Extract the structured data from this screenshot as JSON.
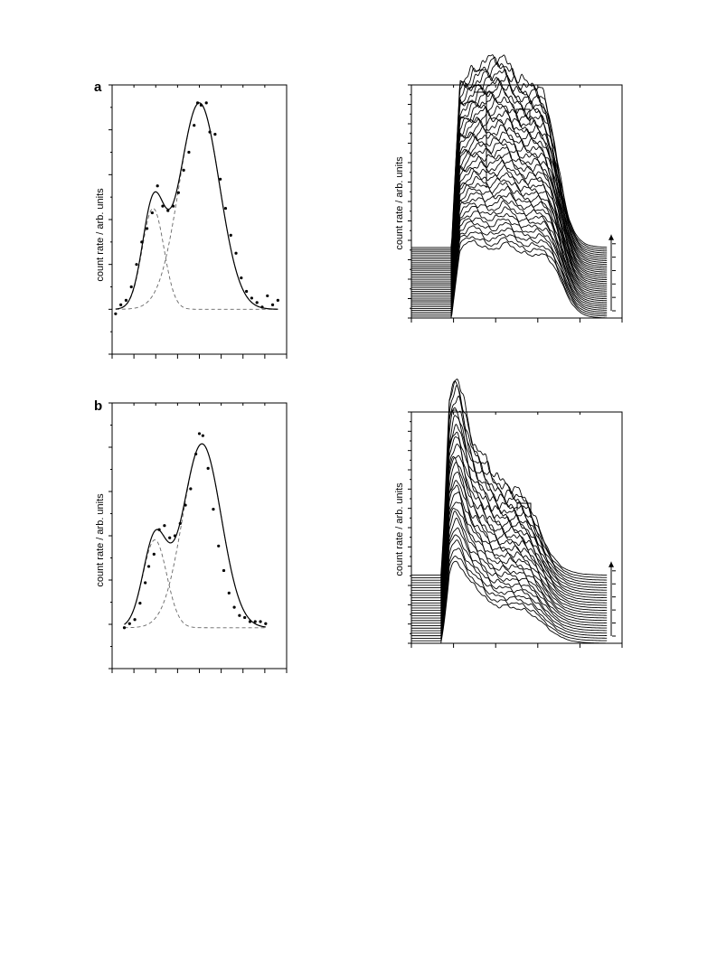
{
  "figure": {
    "panels": [
      {
        "letter": "a",
        "ylabel_left": "count rate / arb. units",
        "ylabel_right": "count rate / arb. units"
      },
      {
        "letter": "b",
        "ylabel_left": "count rate / arb. units",
        "ylabel_right": "count rate / arb. units"
      }
    ]
  },
  "chart_data": [
    {
      "panel": "a",
      "type": "scatter",
      "xlabel": "",
      "ylabel": "count rate / arb. units",
      "xlim": [
        0,
        10
      ],
      "ylim": [
        -0.2,
        1.0
      ],
      "grid": false,
      "legend": "none",
      "baseline": 0,
      "fit_components": [
        {
          "style": "dashed",
          "shape": "gaussian",
          "amplitude": 0.45,
          "center": 2.35,
          "width": 0.62
        },
        {
          "style": "dashed",
          "shape": "gaussian",
          "amplitude": 0.92,
          "center": 5.0,
          "width": 1.15
        }
      ],
      "fit_total": {
        "style": "solid",
        "note_sum_of_components": true
      },
      "points": {
        "x": [
          0.2,
          0.5,
          0.8,
          1.1,
          1.4,
          1.7,
          2.0,
          2.3,
          2.6,
          2.9,
          3.2,
          3.5,
          3.8,
          4.1,
          4.4,
          4.7,
          4.9,
          5.1,
          5.4,
          5.6,
          5.9,
          6.2,
          6.5,
          6.8,
          7.1,
          7.4,
          7.7,
          8.0,
          8.3,
          8.6,
          8.9,
          9.2,
          9.5
        ],
        "y": [
          -0.02,
          0.02,
          0.04,
          0.1,
          0.2,
          0.3,
          0.36,
          0.43,
          0.55,
          0.46,
          0.44,
          0.46,
          0.52,
          0.62,
          0.7,
          0.82,
          0.92,
          0.91,
          0.92,
          0.79,
          0.78,
          0.58,
          0.45,
          0.33,
          0.25,
          0.14,
          0.08,
          0.05,
          0.03,
          0.01,
          0.06,
          0.02,
          0.04
        ]
      }
    },
    {
      "panel": "a",
      "type": "line",
      "xlabel": "",
      "ylabel": "count rate / arb. units",
      "xlim": [
        0,
        10
      ],
      "ylim": [
        0,
        11
      ],
      "grid": false,
      "legend": "none",
      "series_count": 38,
      "offset_step": 0.09,
      "profile": {
        "rise_start": 1.9,
        "rise_end": 2.3,
        "fall_center": 7.2,
        "fall_width": 0.35,
        "fall_front_shift": 0.25,
        "plateau_height_first": 3.0,
        "plateau_height_last": 7.8,
        "bumps_first": [
          [
            2.9,
            0.6,
            0.5
          ],
          [
            4.5,
            0.5,
            0.4
          ],
          [
            6.5,
            0.2,
            0.4
          ]
        ],
        "bumps_last": [
          [
            3.4,
            0.8,
            0.5
          ],
          [
            4.3,
            1.0,
            0.45
          ],
          [
            6.4,
            0.4,
            0.5
          ]
        ]
      },
      "markers": [
        "vertical-line-near-peak",
        "bracket-near-shoulder",
        "up-arrow-right"
      ],
      "right_ticks_count": 6
    },
    {
      "panel": "b",
      "type": "scatter",
      "xlabel": "",
      "ylabel": "count rate / arb. units",
      "xlim": [
        0,
        10
      ],
      "ylim": [
        -0.2,
        1.1
      ],
      "grid": false,
      "legend": "none",
      "baseline": 0,
      "fit_components": [
        {
          "style": "dashed",
          "shape": "gaussian",
          "amplitude": 0.43,
          "center": 2.45,
          "width": 0.68
        },
        {
          "style": "dashed",
          "shape": "gaussian",
          "amplitude": 0.9,
          "center": 5.15,
          "width": 1.1
        }
      ],
      "fit_total": {
        "style": "solid",
        "note_sum_of_components": true
      },
      "points": {
        "x": [
          0.7,
          1.0,
          1.3,
          1.6,
          1.9,
          2.1,
          2.4,
          2.7,
          3.0,
          3.3,
          3.6,
          3.9,
          4.2,
          4.5,
          4.8,
          5.0,
          5.2,
          5.5,
          5.8,
          6.1,
          6.4,
          6.7,
          7.0,
          7.3,
          7.6,
          7.9,
          8.2,
          8.5,
          8.8
        ],
        "y": [
          0.0,
          0.02,
          0.04,
          0.12,
          0.22,
          0.3,
          0.36,
          0.48,
          0.5,
          0.44,
          0.45,
          0.51,
          0.6,
          0.68,
          0.85,
          0.95,
          0.94,
          0.78,
          0.58,
          0.4,
          0.28,
          0.17,
          0.1,
          0.06,
          0.05,
          0.03,
          0.03,
          0.03,
          0.02
        ]
      }
    },
    {
      "panel": "b",
      "type": "line",
      "xlabel": "",
      "ylabel": "count rate / arb. units",
      "xlim": [
        0,
        10
      ],
      "ylim": [
        0,
        11
      ],
      "grid": false,
      "legend": "none",
      "series_count": 28,
      "offset_step": 0.12,
      "profile": {
        "rise_start": 1.4,
        "rise_end": 1.8,
        "fall_center": 6.3,
        "fall_width": 0.5,
        "fall_front_shift": 0.3,
        "plateau_height_first": 1.8,
        "plateau_height_last": 4.5,
        "bumps_first": [
          [
            2.1,
            2.0,
            0.4
          ],
          [
            3.0,
            0.8,
            0.4
          ]
        ],
        "bumps_last": [
          [
            2.1,
            4.8,
            0.45
          ],
          [
            3.2,
            1.2,
            0.5
          ],
          [
            5.8,
            0.3,
            0.5
          ]
        ]
      },
      "markers": [
        "bracket-near-shoulder",
        "up-arrow-right"
      ],
      "right_ticks_count": 6
    }
  ]
}
